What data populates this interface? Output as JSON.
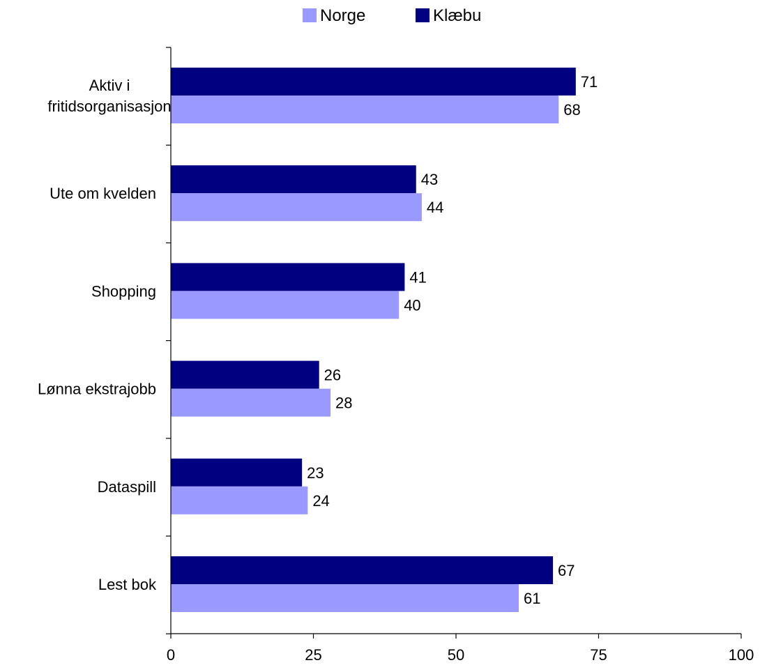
{
  "chart_data": {
    "type": "bar",
    "orientation": "horizontal",
    "categories": [
      "Aktiv i fritidsorganisasjon",
      "Ute om kvelden",
      "Shopping",
      "Lønna ekstrajobb",
      "Dataspill",
      "Lest bok"
    ],
    "category_lines": [
      [
        "Aktiv i",
        "fritidsorganisasjon"
      ],
      [
        "Ute om kvelden"
      ],
      [
        "Shopping"
      ],
      [
        "Lønna ekstrajobb"
      ],
      [
        "Dataspill"
      ],
      [
        "Lest bok"
      ]
    ],
    "series": [
      {
        "name": "Norge",
        "color": "#9999ff",
        "values": [
          68,
          44,
          40,
          28,
          24,
          61
        ]
      },
      {
        "name": "Klæbu",
        "color": "#000080",
        "values": [
          71,
          43,
          41,
          26,
          23,
          67
        ]
      }
    ],
    "xlim": [
      0,
      100
    ],
    "xticks": [
      "0",
      "25",
      "50",
      "75",
      "100"
    ],
    "title": "",
    "xlabel": "",
    "ylabel": "",
    "grid": false,
    "legend": {
      "position": "top-center",
      "entries": [
        "Norge",
        "Klæbu"
      ]
    },
    "data_labels": true
  }
}
